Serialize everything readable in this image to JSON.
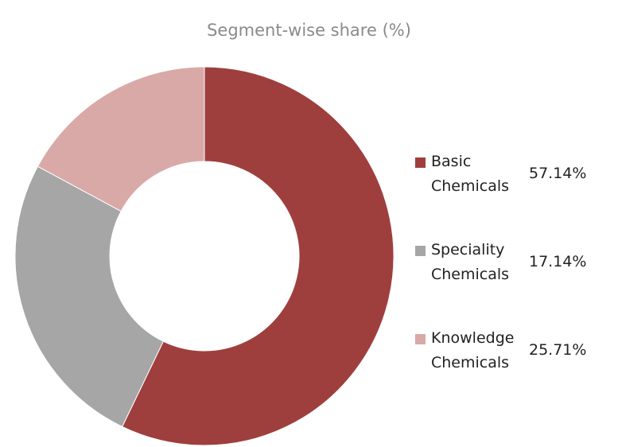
{
  "chart_data": {
    "type": "donut",
    "title": "Segment-wise share (%)",
    "categories": [
      "Basic Chemicals",
      "Speciality Chemicals",
      "Knowledge Chemicals"
    ],
    "values": [
      57.14,
      25.71,
      17.14
    ],
    "colors": [
      "#9e3f3e",
      "#a6a6a6",
      "#d9a9a8"
    ],
    "annotations": [
      "57.14%",
      "17.14%",
      "25.71%"
    ],
    "legend": "right"
  }
}
